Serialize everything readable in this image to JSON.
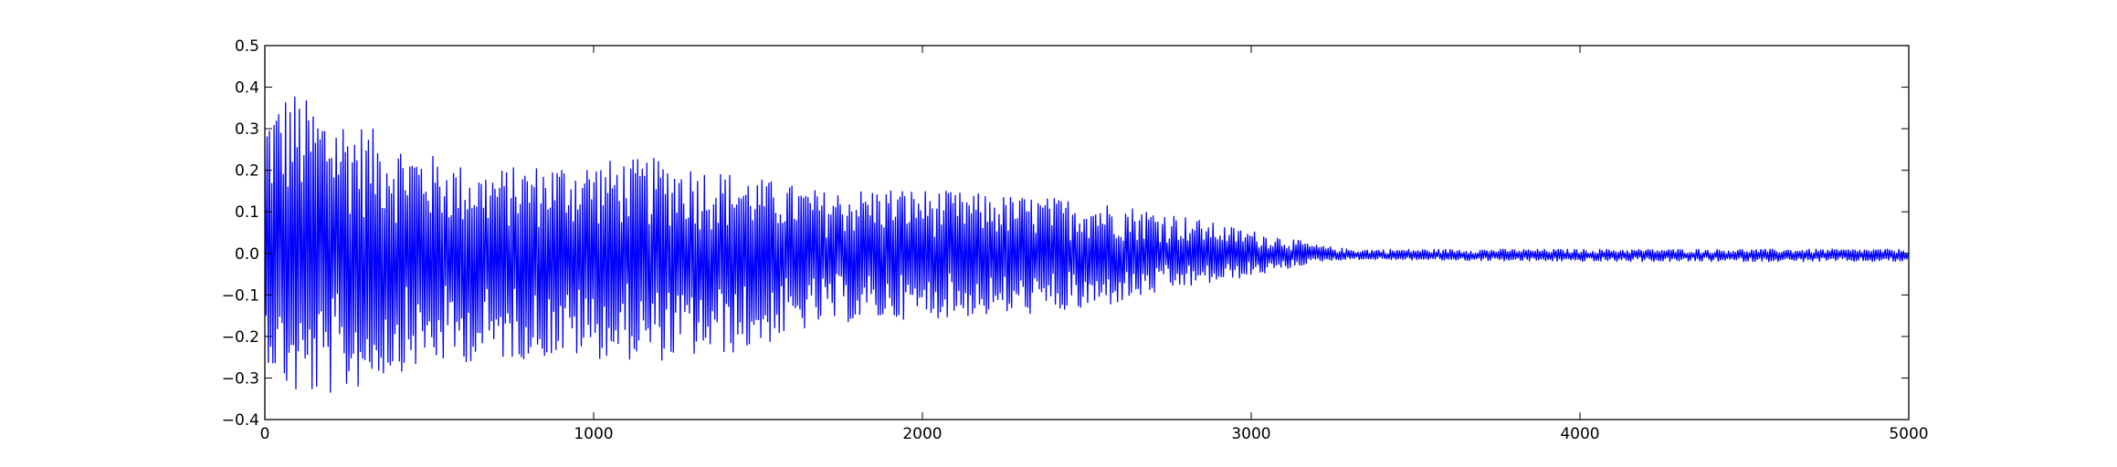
{
  "chart_data": {
    "type": "line",
    "title": "",
    "xlabel": "",
    "ylabel": "",
    "xlim": [
      0,
      5000
    ],
    "ylim": [
      -0.4,
      0.5
    ],
    "x_ticks": [
      0,
      1000,
      2000,
      3000,
      4000,
      5000
    ],
    "y_ticks": [
      -0.4,
      -0.3,
      -0.2,
      -0.1,
      0.0,
      0.1,
      0.2,
      0.3,
      0.4,
      0.5
    ],
    "x_tick_labels": [
      "0",
      "1000",
      "2000",
      "3000",
      "4000",
      "5000"
    ],
    "y_tick_labels": [
      "−0.4",
      "−0.3",
      "−0.2",
      "−0.1",
      "0.0",
      "0.1",
      "0.2",
      "0.3",
      "0.4",
      "0.5"
    ],
    "grid": false,
    "legend": "none",
    "series": [
      {
        "color": "#0000ff",
        "envelope": {
          "x": [
            0,
            80,
            130,
            250,
            380,
            500,
            650,
            900,
            1200,
            1450,
            1700,
            1900,
            2250,
            2500,
            2750,
            2900,
            3100,
            3200,
            3300,
            4000,
            5000
          ],
          "upper": [
            0.35,
            0.4,
            0.37,
            0.33,
            0.28,
            0.24,
            0.2,
            0.22,
            0.23,
            0.19,
            0.15,
            0.16,
            0.14,
            0.13,
            0.1,
            0.07,
            0.04,
            0.02,
            0.01,
            0.01,
            0.01
          ],
          "lower": [
            -0.25,
            -0.35,
            -0.35,
            -0.34,
            -0.29,
            -0.27,
            -0.26,
            -0.25,
            -0.26,
            -0.24,
            -0.17,
            -0.16,
            -0.15,
            -0.14,
            -0.09,
            -0.07,
            -0.04,
            -0.02,
            -0.015,
            -0.02,
            -0.02
          ]
        },
        "offset": -0.005,
        "cycle_length": 7
      }
    ]
  }
}
